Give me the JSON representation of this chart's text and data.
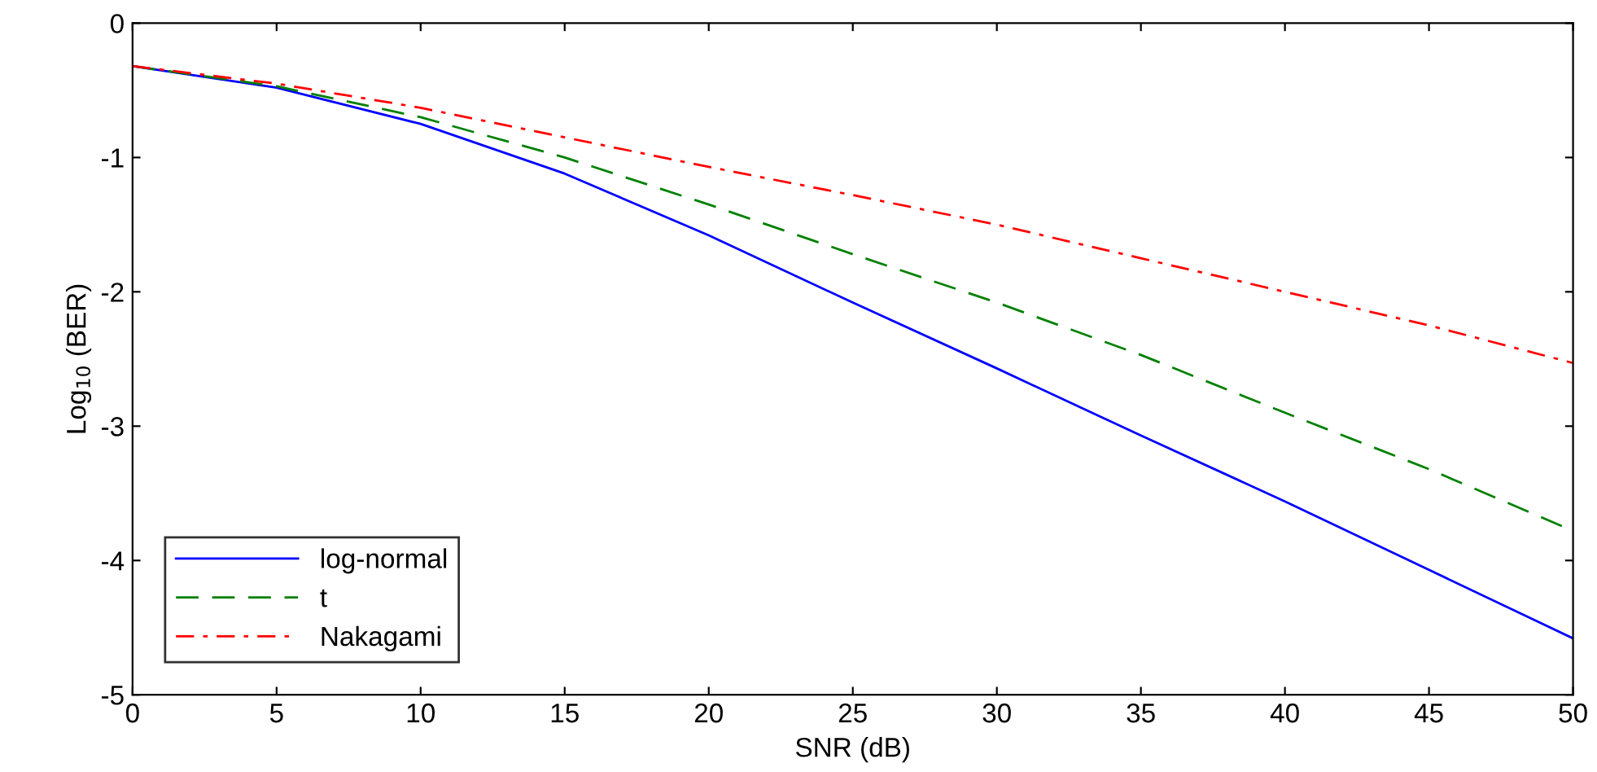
{
  "chart_data": {
    "type": "line",
    "xlabel": "SNR (dB)",
    "ylabel": "Log$_{10}$ (BER)",
    "xlim": [
      0,
      50
    ],
    "ylim": [
      -5,
      0
    ],
    "xticks": [
      0,
      5,
      10,
      15,
      20,
      25,
      30,
      35,
      40,
      45,
      50
    ],
    "yticks": [
      -5,
      -4,
      -3,
      -2,
      -1,
      0
    ],
    "x": [
      0,
      5,
      10,
      15,
      20,
      25,
      30,
      35,
      40,
      45,
      50
    ],
    "grid": false,
    "legend": "bottom left",
    "marker": "none",
    "series": [
      {
        "name": "log-normal",
        "color": "#0000ff",
        "line_style": "solid",
        "values": [
          -0.32,
          -0.48,
          -0.75,
          -1.12,
          -1.58,
          -2.08,
          -2.57,
          -3.07,
          -3.56,
          -4.07,
          -4.58
        ]
      },
      {
        "name": "t",
        "color": "#008000",
        "line_style": "dashed",
        "values": [
          -0.32,
          -0.47,
          -0.7,
          -1.0,
          -1.35,
          -1.72,
          -2.08,
          -2.47,
          -2.9,
          -3.32,
          -3.78
        ]
      },
      {
        "name": "Nakagami",
        "color": "#ff0000",
        "line_style": "dashdot",
        "values": [
          -0.32,
          -0.45,
          -0.63,
          -0.85,
          -1.07,
          -1.28,
          -1.5,
          -1.75,
          -2.0,
          -2.25,
          -2.53
        ]
      }
    ]
  }
}
